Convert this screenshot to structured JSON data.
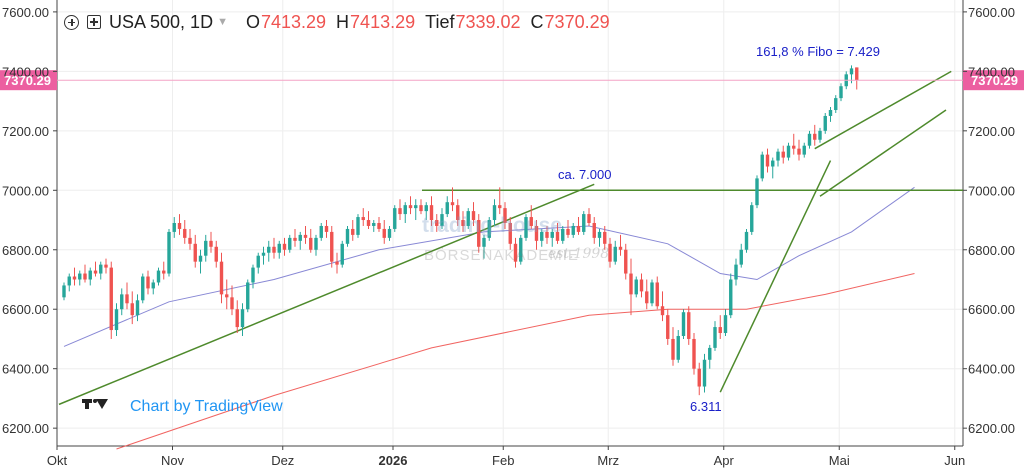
{
  "header": {
    "symbol": "USA 500, 1D",
    "open_label": "O",
    "open_value": "7413.29",
    "high_label": "H",
    "high_value": "7413.29",
    "low_label": "Tief",
    "low_value": "7339.02",
    "close_label": "C",
    "close_value": "7370.29"
  },
  "branding": {
    "text": "Chart by TradingView",
    "logo": "tradingview-logo-icon"
  },
  "watermark": {
    "line1": "trading-house",
    "line2": "BÖRSENAKADEMIE",
    "line3": "est.1998"
  },
  "colors": {
    "up": "#26a69a",
    "down": "#ef5350",
    "ma50": "#7b7bd0",
    "ma200": "#ef5350",
    "trendline": "#4e8a2c",
    "annotation": "#1a20c8",
    "price_label": "#ec5fa0"
  },
  "chart_data": {
    "type": "candlestick",
    "symbol": "USA 500",
    "interval": "1D",
    "ylim": [
      6140,
      7640
    ],
    "y_ticks": [
      6200,
      6400,
      6600,
      6800,
      7000,
      7200,
      7400,
      7600
    ],
    "y_tick_labels": [
      "6200.00",
      "6400.00",
      "6600.00",
      "6800.00",
      "7000.00",
      "7200.00",
      "7400.00",
      "7600.00"
    ],
    "x_tick_labels": [
      "Okt",
      "Nov",
      "Dez",
      "2026",
      "Feb",
      "Mrz",
      "Apr",
      "Mai",
      "Jun"
    ],
    "x_tick_index": [
      0,
      22,
      43,
      64,
      85,
      105,
      127,
      149,
      171
    ],
    "last_price_label": "7370.29",
    "last_price": 7370.29,
    "candles": [
      {
        "o": 6640,
        "h": 6690,
        "l": 6630,
        "c": 6680
      },
      {
        "o": 6680,
        "h": 6720,
        "l": 6660,
        "c": 6710
      },
      {
        "o": 6710,
        "h": 6740,
        "l": 6680,
        "c": 6700
      },
      {
        "o": 6700,
        "h": 6730,
        "l": 6680,
        "c": 6720
      },
      {
        "o": 6720,
        "h": 6750,
        "l": 6690,
        "c": 6700
      },
      {
        "o": 6700,
        "h": 6740,
        "l": 6680,
        "c": 6730
      },
      {
        "o": 6730,
        "h": 6760,
        "l": 6710,
        "c": 6720
      },
      {
        "o": 6720,
        "h": 6760,
        "l": 6700,
        "c": 6750
      },
      {
        "o": 6750,
        "h": 6770,
        "l": 6720,
        "c": 6740
      },
      {
        "o": 6740,
        "h": 6760,
        "l": 6500,
        "c": 6530
      },
      {
        "o": 6530,
        "h": 6620,
        "l": 6510,
        "c": 6600
      },
      {
        "o": 6600,
        "h": 6670,
        "l": 6580,
        "c": 6650
      },
      {
        "o": 6650,
        "h": 6690,
        "l": 6600,
        "c": 6620
      },
      {
        "o": 6620,
        "h": 6660,
        "l": 6550,
        "c": 6580
      },
      {
        "o": 6580,
        "h": 6650,
        "l": 6560,
        "c": 6630
      },
      {
        "o": 6630,
        "h": 6720,
        "l": 6620,
        "c": 6710
      },
      {
        "o": 6710,
        "h": 6730,
        "l": 6650,
        "c": 6670
      },
      {
        "o": 6670,
        "h": 6700,
        "l": 6650,
        "c": 6690
      },
      {
        "o": 6690,
        "h": 6740,
        "l": 6680,
        "c": 6730
      },
      {
        "o": 6730,
        "h": 6760,
        "l": 6700,
        "c": 6720
      },
      {
        "o": 6720,
        "h": 6870,
        "l": 6710,
        "c": 6860
      },
      {
        "o": 6860,
        "h": 6910,
        "l": 6840,
        "c": 6890
      },
      {
        "o": 6890,
        "h": 6920,
        "l": 6850,
        "c": 6870
      },
      {
        "o": 6870,
        "h": 6900,
        "l": 6820,
        "c": 6840
      },
      {
        "o": 6840,
        "h": 6870,
        "l": 6800,
        "c": 6820
      },
      {
        "o": 6820,
        "h": 6850,
        "l": 6740,
        "c": 6760
      },
      {
        "o": 6760,
        "h": 6800,
        "l": 6720,
        "c": 6780
      },
      {
        "o": 6780,
        "h": 6850,
        "l": 6760,
        "c": 6830
      },
      {
        "o": 6830,
        "h": 6860,
        "l": 6790,
        "c": 6810
      },
      {
        "o": 6810,
        "h": 6830,
        "l": 6740,
        "c": 6760
      },
      {
        "o": 6760,
        "h": 6790,
        "l": 6620,
        "c": 6650
      },
      {
        "o": 6650,
        "h": 6700,
        "l": 6600,
        "c": 6640
      },
      {
        "o": 6640,
        "h": 6680,
        "l": 6580,
        "c": 6600
      },
      {
        "o": 6600,
        "h": 6630,
        "l": 6520,
        "c": 6540
      },
      {
        "o": 6540,
        "h": 6620,
        "l": 6510,
        "c": 6600
      },
      {
        "o": 6600,
        "h": 6700,
        "l": 6590,
        "c": 6690
      },
      {
        "o": 6690,
        "h": 6750,
        "l": 6670,
        "c": 6740
      },
      {
        "o": 6740,
        "h": 6790,
        "l": 6720,
        "c": 6780
      },
      {
        "o": 6780,
        "h": 6810,
        "l": 6750,
        "c": 6790
      },
      {
        "o": 6790,
        "h": 6830,
        "l": 6760,
        "c": 6810
      },
      {
        "o": 6810,
        "h": 6840,
        "l": 6770,
        "c": 6790
      },
      {
        "o": 6790,
        "h": 6830,
        "l": 6770,
        "c": 6820
      },
      {
        "o": 6820,
        "h": 6840,
        "l": 6780,
        "c": 6800
      },
      {
        "o": 6800,
        "h": 6850,
        "l": 6790,
        "c": 6840
      },
      {
        "o": 6840,
        "h": 6870,
        "l": 6810,
        "c": 6830
      },
      {
        "o": 6830,
        "h": 6860,
        "l": 6800,
        "c": 6850
      },
      {
        "o": 6850,
        "h": 6880,
        "l": 6820,
        "c": 6840
      },
      {
        "o": 6840,
        "h": 6870,
        "l": 6790,
        "c": 6800
      },
      {
        "o": 6800,
        "h": 6850,
        "l": 6780,
        "c": 6840
      },
      {
        "o": 6840,
        "h": 6890,
        "l": 6830,
        "c": 6880
      },
      {
        "o": 6880,
        "h": 6900,
        "l": 6840,
        "c": 6860
      },
      {
        "o": 6860,
        "h": 6880,
        "l": 6740,
        "c": 6760
      },
      {
        "o": 6760,
        "h": 6790,
        "l": 6720,
        "c": 6750
      },
      {
        "o": 6750,
        "h": 6830,
        "l": 6740,
        "c": 6820
      },
      {
        "o": 6820,
        "h": 6880,
        "l": 6810,
        "c": 6870
      },
      {
        "o": 6870,
        "h": 6900,
        "l": 6830,
        "c": 6850
      },
      {
        "o": 6850,
        "h": 6920,
        "l": 6840,
        "c": 6910
      },
      {
        "o": 6910,
        "h": 6940,
        "l": 6880,
        "c": 6900
      },
      {
        "o": 6900,
        "h": 6930,
        "l": 6870,
        "c": 6880
      },
      {
        "o": 6880,
        "h": 6900,
        "l": 6860,
        "c": 6890
      },
      {
        "o": 6890,
        "h": 6910,
        "l": 6860,
        "c": 6870
      },
      {
        "o": 6870,
        "h": 6900,
        "l": 6820,
        "c": 6840
      },
      {
        "o": 6840,
        "h": 6880,
        "l": 6830,
        "c": 6870
      },
      {
        "o": 6870,
        "h": 6950,
        "l": 6860,
        "c": 6940
      },
      {
        "o": 6940,
        "h": 6970,
        "l": 6900,
        "c": 6920
      },
      {
        "o": 6920,
        "h": 6960,
        "l": 6890,
        "c": 6950
      },
      {
        "o": 6950,
        "h": 6980,
        "l": 6920,
        "c": 6940
      },
      {
        "o": 6940,
        "h": 6970,
        "l": 6900,
        "c": 6950
      },
      {
        "o": 6950,
        "h": 6970,
        "l": 6920,
        "c": 6930
      },
      {
        "o": 6930,
        "h": 6960,
        "l": 6900,
        "c": 6950
      },
      {
        "o": 6950,
        "h": 6980,
        "l": 6880,
        "c": 6900
      },
      {
        "o": 6900,
        "h": 6920,
        "l": 6860,
        "c": 6880
      },
      {
        "o": 6880,
        "h": 6940,
        "l": 6870,
        "c": 6920
      },
      {
        "o": 6920,
        "h": 6980,
        "l": 6910,
        "c": 6960
      },
      {
        "o": 6960,
        "h": 7010,
        "l": 6930,
        "c": 6950
      },
      {
        "o": 6950,
        "h": 6970,
        "l": 6880,
        "c": 6900
      },
      {
        "o": 6900,
        "h": 6930,
        "l": 6860,
        "c": 6880
      },
      {
        "o": 6880,
        "h": 6940,
        "l": 6870,
        "c": 6930
      },
      {
        "o": 6930,
        "h": 6960,
        "l": 6880,
        "c": 6900
      },
      {
        "o": 6900,
        "h": 6920,
        "l": 6790,
        "c": 6810
      },
      {
        "o": 6810,
        "h": 6850,
        "l": 6770,
        "c": 6840
      },
      {
        "o": 6840,
        "h": 6910,
        "l": 6830,
        "c": 6900
      },
      {
        "o": 6900,
        "h": 6970,
        "l": 6880,
        "c": 6950
      },
      {
        "o": 6950,
        "h": 7010,
        "l": 6920,
        "c": 6940
      },
      {
        "o": 6940,
        "h": 6960,
        "l": 6870,
        "c": 6890
      },
      {
        "o": 6890,
        "h": 6910,
        "l": 6800,
        "c": 6820
      },
      {
        "o": 6820,
        "h": 6840,
        "l": 6740,
        "c": 6760
      },
      {
        "o": 6760,
        "h": 6850,
        "l": 6750,
        "c": 6840
      },
      {
        "o": 6840,
        "h": 6920,
        "l": 6830,
        "c": 6910
      },
      {
        "o": 6910,
        "h": 6950,
        "l": 6870,
        "c": 6880
      },
      {
        "o": 6880,
        "h": 6900,
        "l": 6800,
        "c": 6830
      },
      {
        "o": 6830,
        "h": 6870,
        "l": 6810,
        "c": 6860
      },
      {
        "o": 6860,
        "h": 6880,
        "l": 6820,
        "c": 6840
      },
      {
        "o": 6840,
        "h": 6870,
        "l": 6810,
        "c": 6860
      },
      {
        "o": 6860,
        "h": 6890,
        "l": 6820,
        "c": 6830
      },
      {
        "o": 6830,
        "h": 6880,
        "l": 6820,
        "c": 6870
      },
      {
        "o": 6870,
        "h": 6900,
        "l": 6840,
        "c": 6850
      },
      {
        "o": 6850,
        "h": 6890,
        "l": 6840,
        "c": 6880
      },
      {
        "o": 6880,
        "h": 6910,
        "l": 6850,
        "c": 6860
      },
      {
        "o": 6860,
        "h": 6930,
        "l": 6850,
        "c": 6920
      },
      {
        "o": 6920,
        "h": 6940,
        "l": 6880,
        "c": 6890
      },
      {
        "o": 6890,
        "h": 6910,
        "l": 6820,
        "c": 6840
      },
      {
        "o": 6840,
        "h": 6870,
        "l": 6810,
        "c": 6860
      },
      {
        "o": 6860,
        "h": 6880,
        "l": 6800,
        "c": 6820
      },
      {
        "o": 6820,
        "h": 6840,
        "l": 6740,
        "c": 6760
      },
      {
        "o": 6760,
        "h": 6830,
        "l": 6750,
        "c": 6810
      },
      {
        "o": 6810,
        "h": 6850,
        "l": 6780,
        "c": 6800
      },
      {
        "o": 6800,
        "h": 6820,
        "l": 6700,
        "c": 6720
      },
      {
        "o": 6720,
        "h": 6770,
        "l": 6580,
        "c": 6650
      },
      {
        "o": 6650,
        "h": 6710,
        "l": 6640,
        "c": 6700
      },
      {
        "o": 6700,
        "h": 6720,
        "l": 6640,
        "c": 6660
      },
      {
        "o": 6660,
        "h": 6700,
        "l": 6600,
        "c": 6620
      },
      {
        "o": 6620,
        "h": 6700,
        "l": 6610,
        "c": 6690
      },
      {
        "o": 6690,
        "h": 6710,
        "l": 6600,
        "c": 6610
      },
      {
        "o": 6610,
        "h": 6660,
        "l": 6560,
        "c": 6580
      },
      {
        "o": 6580,
        "h": 6600,
        "l": 6480,
        "c": 6500
      },
      {
        "o": 6500,
        "h": 6540,
        "l": 6410,
        "c": 6430
      },
      {
        "o": 6430,
        "h": 6530,
        "l": 6420,
        "c": 6510
      },
      {
        "o": 6510,
        "h": 6600,
        "l": 6500,
        "c": 6590
      },
      {
        "o": 6590,
        "h": 6610,
        "l": 6480,
        "c": 6500
      },
      {
        "o": 6500,
        "h": 6520,
        "l": 6380,
        "c": 6400
      },
      {
        "o": 6400,
        "h": 6420,
        "l": 6311,
        "c": 6340
      },
      {
        "o": 6340,
        "h": 6450,
        "l": 6320,
        "c": 6430
      },
      {
        "o": 6430,
        "h": 6480,
        "l": 6400,
        "c": 6470
      },
      {
        "o": 6470,
        "h": 6560,
        "l": 6460,
        "c": 6540
      },
      {
        "o": 6540,
        "h": 6580,
        "l": 6500,
        "c": 6520
      },
      {
        "o": 6520,
        "h": 6600,
        "l": 6510,
        "c": 6580
      },
      {
        "o": 6580,
        "h": 6720,
        "l": 6570,
        "c": 6700
      },
      {
        "o": 6700,
        "h": 6770,
        "l": 6680,
        "c": 6750
      },
      {
        "o": 6750,
        "h": 6820,
        "l": 6740,
        "c": 6800
      },
      {
        "o": 6800,
        "h": 6870,
        "l": 6790,
        "c": 6860
      },
      {
        "o": 6860,
        "h": 6960,
        "l": 6850,
        "c": 6950
      },
      {
        "o": 6950,
        "h": 7050,
        "l": 6940,
        "c": 7040
      },
      {
        "o": 7040,
        "h": 7130,
        "l": 7030,
        "c": 7120
      },
      {
        "o": 7120,
        "h": 7140,
        "l": 7060,
        "c": 7080
      },
      {
        "o": 7080,
        "h": 7110,
        "l": 7040,
        "c": 7100
      },
      {
        "o": 7100,
        "h": 7140,
        "l": 7080,
        "c": 7130
      },
      {
        "o": 7130,
        "h": 7150,
        "l": 7090,
        "c": 7110
      },
      {
        "o": 7110,
        "h": 7160,
        "l": 7100,
        "c": 7150
      },
      {
        "o": 7150,
        "h": 7190,
        "l": 7120,
        "c": 7140
      },
      {
        "o": 7140,
        "h": 7170,
        "l": 7100,
        "c": 7120
      },
      {
        "o": 7120,
        "h": 7160,
        "l": 7110,
        "c": 7150
      },
      {
        "o": 7150,
        "h": 7200,
        "l": 7140,
        "c": 7190
      },
      {
        "o": 7190,
        "h": 7220,
        "l": 7150,
        "c": 7170
      },
      {
        "o": 7170,
        "h": 7210,
        "l": 7160,
        "c": 7200
      },
      {
        "o": 7200,
        "h": 7260,
        "l": 7190,
        "c": 7250
      },
      {
        "o": 7250,
        "h": 7280,
        "l": 7230,
        "c": 7270
      },
      {
        "o": 7270,
        "h": 7320,
        "l": 7260,
        "c": 7310
      },
      {
        "o": 7310,
        "h": 7360,
        "l": 7300,
        "c": 7350
      },
      {
        "o": 7350,
        "h": 7400,
        "l": 7340,
        "c": 7390
      },
      {
        "o": 7390,
        "h": 7420,
        "l": 7360,
        "c": 7410
      },
      {
        "o": 7413.29,
        "h": 7413.29,
        "l": 7339.02,
        "c": 7370.29
      }
    ],
    "moving_averages": [
      {
        "name": "MA50",
        "color": "#7b7bd0",
        "points": [
          [
            0,
            6475
          ],
          [
            20,
            6625
          ],
          [
            40,
            6700
          ],
          [
            60,
            6800
          ],
          [
            80,
            6860
          ],
          [
            100,
            6880
          ],
          [
            115,
            6820
          ],
          [
            125,
            6720
          ],
          [
            132,
            6700
          ],
          [
            140,
            6780
          ],
          [
            150,
            6860
          ],
          [
            162,
            7010
          ]
        ]
      },
      {
        "name": "MA200",
        "color": "#ef5350",
        "points": [
          [
            10,
            6130
          ],
          [
            40,
            6310
          ],
          [
            70,
            6470
          ],
          [
            100,
            6580
          ],
          [
            115,
            6600
          ],
          [
            130,
            6600
          ],
          [
            145,
            6650
          ],
          [
            162,
            6720
          ]
        ]
      }
    ],
    "trendlines": [
      {
        "name": "long-support",
        "from": [
          0,
          6280
        ],
        "to": [
          101,
          7020
        ]
      },
      {
        "name": "resistance-7000",
        "from": [
          64,
          7000
        ],
        "to": [
          180,
          7000
        ]
      },
      {
        "name": "rally-line",
        "from": [
          125,
          6321
        ],
        "to": [
          146,
          7100
        ]
      },
      {
        "name": "channel-upper",
        "from": [
          143,
          7140
        ],
        "to": [
          169,
          7400
        ]
      },
      {
        "name": "channel-lower",
        "from": [
          144,
          6980
        ],
        "to": [
          168,
          7270
        ]
      }
    ],
    "annotations": [
      {
        "text": "161,8 % Fibo = 7.429",
        "anchor": "fibo"
      },
      {
        "text": "ca. 7.000",
        "anchor": "resistance"
      },
      {
        "text": "6.311",
        "anchor": "low"
      }
    ]
  }
}
